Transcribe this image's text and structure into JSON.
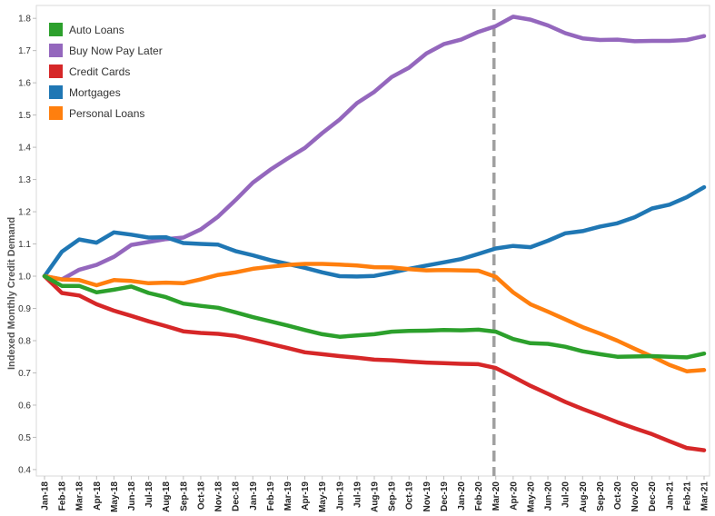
{
  "chart_data": {
    "type": "line",
    "title": "",
    "xlabel": "",
    "ylabel": "Indexed Monthly Credit Demand",
    "ylim": [
      0.38,
      1.84
    ],
    "yticks": [
      0.4,
      0.5,
      0.6,
      0.7,
      0.8,
      0.9,
      1.0,
      1.1,
      1.2,
      1.3,
      1.4,
      1.5,
      1.6,
      1.7,
      1.8
    ],
    "ytick_labels": [
      "0.4",
      "0.5",
      "0.6",
      "0.7",
      "0.8",
      "0.9",
      "1.0",
      "1.1",
      "1.2",
      "1.3",
      "1.4",
      "1.5",
      "1.6",
      "1.7",
      "1.8"
    ],
    "grid": false,
    "legend_position": "top-left",
    "reference_line": {
      "x": "Mar-20",
      "style": "dashed",
      "color": "#a0a0a0"
    },
    "categories": [
      "Jan-18",
      "Feb-18",
      "Mar-18",
      "Apr-18",
      "May-18",
      "Jun-18",
      "Jul-18",
      "Aug-18",
      "Sep-18",
      "Oct-18",
      "Nov-18",
      "Dec-18",
      "Jan-19",
      "Feb-19",
      "Mar-19",
      "Apr-19",
      "May-19",
      "Jun-19",
      "Jul-19",
      "Aug-19",
      "Sep-19",
      "Oct-19",
      "Nov-19",
      "Dec-19",
      "Jan-20",
      "Feb-20",
      "Mar-20",
      "Apr-20",
      "May-20",
      "Jun-20",
      "Jul-20",
      "Aug-20",
      "Sep-20",
      "Oct-20",
      "Nov-20",
      "Dec-20",
      "Jan-21",
      "Feb-21",
      "Mar-21"
    ],
    "series": [
      {
        "name": "Auto Loans",
        "color": "#2ca02c",
        "values": [
          1.0,
          0.97,
          0.97,
          0.95,
          0.958,
          0.968,
          0.948,
          0.935,
          0.915,
          0.908,
          0.902,
          0.888,
          0.873,
          0.86,
          0.847,
          0.833,
          0.82,
          0.812,
          0.816,
          0.82,
          0.828,
          0.83,
          0.831,
          0.833,
          0.832,
          0.834,
          0.828,
          0.805,
          0.792,
          0.79,
          0.781,
          0.767,
          0.758,
          0.75,
          0.751,
          0.752,
          0.75,
          0.748,
          0.76
        ]
      },
      {
        "name": "Buy Now Pay Later",
        "color": "#9467bd",
        "values": [
          1.0,
          0.99,
          1.02,
          1.035,
          1.06,
          1.097,
          1.106,
          1.115,
          1.12,
          1.145,
          1.185,
          1.236,
          1.29,
          1.33,
          1.365,
          1.398,
          1.444,
          1.486,
          1.537,
          1.572,
          1.618,
          1.647,
          1.691,
          1.72,
          1.734,
          1.758,
          1.776,
          1.805,
          1.796,
          1.778,
          1.754,
          1.738,
          1.733,
          1.734,
          1.729,
          1.73,
          1.73,
          1.733,
          1.745
        ]
      },
      {
        "name": "Credit Cards",
        "color": "#d62728",
        "values": [
          1.0,
          0.948,
          0.94,
          0.913,
          0.893,
          0.877,
          0.86,
          0.845,
          0.829,
          0.824,
          0.821,
          0.815,
          0.803,
          0.79,
          0.777,
          0.764,
          0.758,
          0.752,
          0.747,
          0.741,
          0.739,
          0.735,
          0.732,
          0.73,
          0.728,
          0.727,
          0.715,
          0.688,
          0.66,
          0.635,
          0.61,
          0.588,
          0.568,
          0.547,
          0.528,
          0.51,
          0.488,
          0.467,
          0.46
        ]
      },
      {
        "name": "Mortgages",
        "color": "#1f77b4",
        "values": [
          1.0,
          1.076,
          1.114,
          1.104,
          1.136,
          1.129,
          1.12,
          1.121,
          1.103,
          1.1,
          1.098,
          1.078,
          1.065,
          1.05,
          1.038,
          1.026,
          1.012,
          1.0,
          0.999,
          1.001,
          1.011,
          1.023,
          1.033,
          1.043,
          1.053,
          1.069,
          1.086,
          1.094,
          1.09,
          1.11,
          1.133,
          1.14,
          1.154,
          1.164,
          1.183,
          1.21,
          1.222,
          1.245,
          1.276
        ]
      },
      {
        "name": "Personal Loans",
        "color": "#ff7f0e",
        "values": [
          1.0,
          0.99,
          0.988,
          0.972,
          0.988,
          0.985,
          0.978,
          0.98,
          0.978,
          0.99,
          1.004,
          1.012,
          1.023,
          1.029,
          1.035,
          1.038,
          1.038,
          1.036,
          1.033,
          1.028,
          1.027,
          1.022,
          1.018,
          1.019,
          1.018,
          1.017,
          0.998,
          0.95,
          0.913,
          0.89,
          0.866,
          0.842,
          0.822,
          0.8,
          0.775,
          0.751,
          0.725,
          0.705,
          0.709
        ]
      }
    ]
  }
}
